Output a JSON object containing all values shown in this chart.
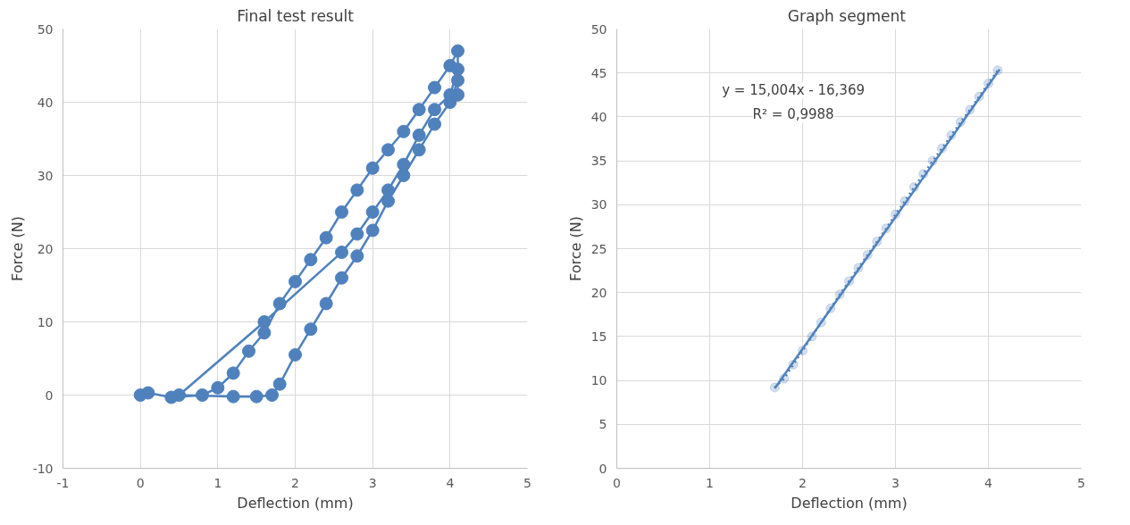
{
  "chart_data": [
    {
      "type": "line",
      "title": "Final test result",
      "xlabel": "Deflection (mm)",
      "ylabel": "Force (N)",
      "xlim": [
        -1,
        5
      ],
      "ylim": [
        -10,
        50
      ],
      "xticks": [
        -1,
        0,
        1,
        2,
        3,
        4,
        5
      ],
      "yticks": [
        -10,
        0,
        10,
        20,
        30,
        40,
        50
      ],
      "grid": true,
      "marker": "circle",
      "series": [
        {
          "color": "#4f81bd",
          "x": [
            0,
            0.1,
            0.4,
            0.8,
            1.0,
            1.2,
            1.4,
            1.6,
            1.8,
            2.0,
            2.2,
            2.4,
            2.6,
            2.8,
            3.0,
            3.2,
            3.4,
            3.6,
            3.8,
            4.0,
            4.1,
            4.1,
            4.0,
            3.8,
            3.6,
            3.4,
            3.2,
            3.0,
            2.8,
            2.6,
            2.4,
            2.2,
            2.0,
            1.8,
            1.7,
            1.5,
            1.2,
            0.5,
            1.6,
            2.6,
            2.8,
            3.0,
            3.2,
            3.4,
            3.6,
            3.8,
            4.0,
            4.1,
            4.1
          ],
          "values": [
            0,
            0.3,
            -0.3,
            0,
            1,
            3,
            6,
            8.5,
            12.5,
            15.5,
            18.5,
            21.5,
            25,
            28,
            31,
            33.5,
            36,
            39,
            42,
            45,
            47,
            43,
            40,
            37,
            33.5,
            30,
            26.5,
            22.5,
            19,
            16,
            12.5,
            9,
            5.5,
            1.5,
            0,
            -0.2,
            -0.2,
            0,
            10,
            19.5,
            22,
            25,
            28,
            31.5,
            35.5,
            39,
            41,
            44.5,
            41
          ]
        }
      ]
    },
    {
      "type": "line",
      "title": "Graph  segment",
      "xlabel": "Deflection (mm)",
      "ylabel": "Force (N)",
      "xlim": [
        0,
        5
      ],
      "ylim": [
        0,
        50
      ],
      "xticks": [
        0,
        1,
        2,
        3,
        4,
        5
      ],
      "yticks": [
        0,
        5,
        10,
        15,
        20,
        25,
        30,
        35,
        40,
        45,
        50
      ],
      "grid": true,
      "annotations": [
        "y = 15,004x - 16,369",
        "R² = 0,9988"
      ],
      "series": [
        {
          "color": "#4f81bd",
          "marker": "circle",
          "line_style": "dotted",
          "x": [
            1.7,
            1.8,
            1.9,
            2.0,
            2.1,
            2.2,
            2.3,
            2.4,
            2.5,
            2.6,
            2.7,
            2.8,
            2.9,
            3.0,
            3.1,
            3.2,
            3.3,
            3.4,
            3.5,
            3.6,
            3.7,
            3.8,
            3.9,
            4.0,
            4.1
          ],
          "values": [
            9.2,
            10.2,
            11.8,
            13.4,
            15.0,
            16.6,
            18.2,
            19.8,
            21.3,
            22.8,
            24.3,
            25.8,
            27.3,
            28.9,
            30.4,
            32.0,
            33.5,
            35.0,
            36.4,
            37.9,
            39.4,
            40.8,
            42.3,
            43.8,
            45.3
          ]
        },
        {
          "color": "#4f81bd",
          "marker": "none",
          "line_style": "solid",
          "x": [
            1.7,
            4.12
          ],
          "values": [
            9.1,
            45.4
          ]
        }
      ]
    }
  ]
}
